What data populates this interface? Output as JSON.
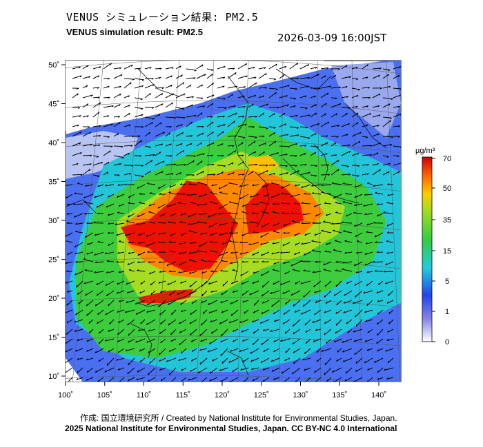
{
  "title_jp": "VENUS シミュレーション結果: PM2.5",
  "title_en": "VENUS simulation result: PM2.5",
  "timestamp": "2026-03-09 16:00JST",
  "credits": {
    "line1": "作成: 国立環境研究所 / Created by National Institute for Environmental Studies, Japan.",
    "line2": "2025 National Institute for Environmental Studies, Japan. CC BY-NC 4.0 International"
  },
  "map": {
    "lat_ticks": [
      "50˚",
      "45˚",
      "40˚",
      "35˚",
      "30˚",
      "25˚",
      "20˚",
      "15˚",
      "10˚"
    ],
    "lon_ticks": [
      "100˚",
      "105˚",
      "110˚",
      "115˚",
      "120˚",
      "125˚",
      "130˚",
      "135˚",
      "140˚"
    ],
    "lat_values": [
      50,
      45,
      40,
      35,
      30,
      25,
      20,
      15,
      10
    ],
    "lon_values": [
      100,
      105,
      110,
      115,
      120,
      125,
      130,
      135,
      140
    ]
  },
  "colorbar": {
    "unit": "µg/m³",
    "tick_labels": [
      "70",
      "50",
      "35",
      "15",
      "5",
      "1",
      "0"
    ],
    "colors": [
      "#d9d9f7",
      "#7777e0",
      "#2255ee",
      "#22bbdd",
      "#33cc55",
      "#66dd22",
      "#ddcc11",
      "#ff8800",
      "#ee2200",
      "#cc0000"
    ]
  }
}
